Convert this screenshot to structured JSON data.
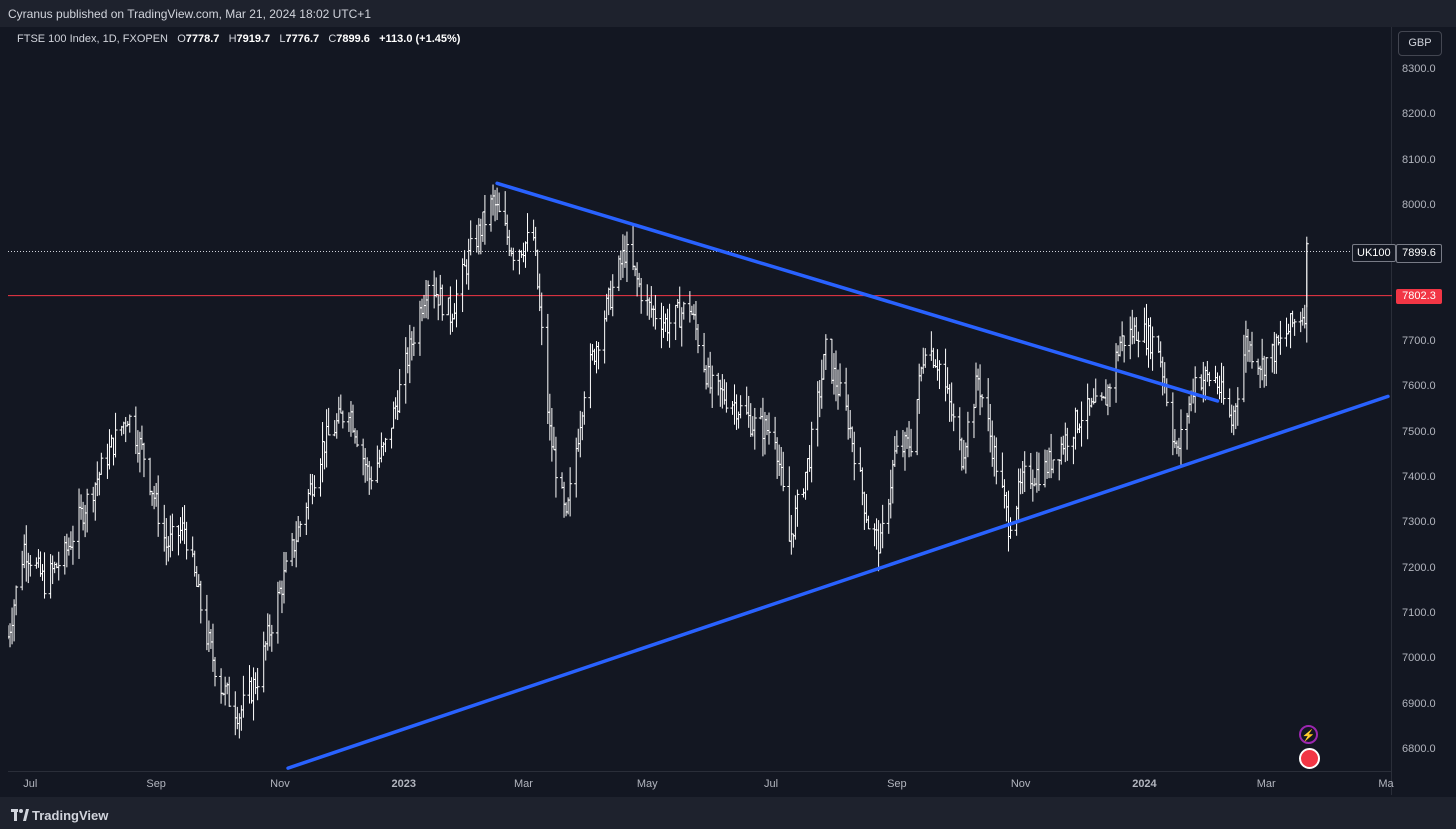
{
  "header": {
    "published": "Cyranus published on TradingView.com, Mar 21, 2024 18:02 UTC+1"
  },
  "legend": {
    "symbol": "FTSE 100 Index, 1D, FXOPEN",
    "open_label": "O",
    "open": "7778.7",
    "high_label": "H",
    "high": "7919.7",
    "low_label": "L",
    "low": "7776.7",
    "close_label": "C",
    "close": "7899.6",
    "change": "+113.0 (+1.45%)"
  },
  "currency": "GBP",
  "symbol_tag": "UK100",
  "price_tag": "7899.6",
  "level_tag": "7802.3",
  "footer": {
    "brand": "TradingView"
  },
  "colors": {
    "background": "#131722",
    "bars": "#ffffff",
    "trendline": "#2962ff",
    "level": "#f23645"
  },
  "chart_data": {
    "type": "ohlc",
    "title": "FTSE 100 Index, 1D, FXOPEN",
    "ylabel": "",
    "y_ticks": [
      "8300.0",
      "8200.0",
      "8100.0",
      "8000.0",
      "7900.0",
      "7800.0",
      "7700.0",
      "7600.0",
      "7500.0",
      "7400.0",
      "7300.0",
      "7200.0",
      "7100.0",
      "7000.0",
      "6900.0",
      "6800.0"
    ],
    "x_ticks": [
      "Jul",
      "Sep",
      "Nov",
      "2023",
      "Mar",
      "May",
      "Jul",
      "Sep",
      "Nov",
      "2024",
      "Mar",
      "Ma"
    ],
    "x_range": [
      "2022-06-20",
      "2024-05-01"
    ],
    "ylim": [
      6760,
      8360
    ],
    "grid": false,
    "last_price": 7899.6,
    "horizontal_level": 7802.3,
    "trendlines": [
      {
        "name": "",
        "from": [
          "2023-02-16",
          8050
        ],
        "to": [
          "2024-02-06",
          7570
        ],
        "color": "#2962ff"
      },
      {
        "name": "",
        "from": [
          "2022-11-05",
          6760
        ],
        "to": [
          "2024-04-30",
          7580
        ],
        "color": "#2962ff"
      }
    ],
    "close_path": [
      [
        "2022-06-20",
        7050
      ],
      [
        "2022-06-28",
        7250
      ],
      [
        "2022-07-08",
        7170
      ],
      [
        "2022-07-18",
        7230
      ],
      [
        "2022-07-28",
        7340
      ],
      [
        "2022-08-08",
        7450
      ],
      [
        "2022-08-18",
        7540
      ],
      [
        "2022-08-26",
        7450
      ],
      [
        "2022-09-06",
        7250
      ],
      [
        "2022-09-15",
        7290
      ],
      [
        "2022-09-26",
        7050
      ],
      [
        "2022-10-03",
        6940
      ],
      [
        "2022-10-12",
        6880
      ],
      [
        "2022-10-21",
        6960
      ],
      [
        "2022-11-01",
        7150
      ],
      [
        "2022-11-11",
        7300
      ],
      [
        "2022-11-22",
        7470
      ],
      [
        "2022-12-05",
        7560
      ],
      [
        "2022-12-15",
        7400
      ],
      [
        "2022-12-23",
        7470
      ],
      [
        "2023-01-05",
        7700
      ],
      [
        "2023-01-13",
        7840
      ],
      [
        "2023-01-24",
        7760
      ],
      [
        "2023-02-03",
        7900
      ],
      [
        "2023-02-14",
        8010
      ],
      [
        "2023-02-24",
        7900
      ],
      [
        "2023-03-06",
        7930
      ],
      [
        "2023-03-14",
        7500
      ],
      [
        "2023-03-22",
        7300
      ],
      [
        "2023-03-31",
        7600
      ],
      [
        "2023-04-10",
        7760
      ],
      [
        "2023-04-20",
        7900
      ],
      [
        "2023-05-01",
        7780
      ],
      [
        "2023-05-11",
        7740
      ],
      [
        "2023-05-22",
        7780
      ],
      [
        "2023-06-01",
        7600
      ],
      [
        "2023-06-12",
        7570
      ],
      [
        "2023-06-22",
        7520
      ],
      [
        "2023-07-03",
        7500
      ],
      [
        "2023-07-10",
        7260
      ],
      [
        "2023-07-20",
        7450
      ],
      [
        "2023-07-28",
        7680
      ],
      [
        "2023-08-08",
        7530
      ],
      [
        "2023-08-18",
        7300
      ],
      [
        "2023-08-24",
        7250
      ],
      [
        "2023-08-31",
        7450
      ],
      [
        "2023-09-08",
        7480
      ],
      [
        "2023-09-15",
        7700
      ],
      [
        "2023-09-22",
        7650
      ],
      [
        "2023-10-03",
        7450
      ],
      [
        "2023-10-11",
        7620
      ],
      [
        "2023-10-20",
        7430
      ],
      [
        "2023-10-26",
        7300
      ],
      [
        "2023-11-03",
        7400
      ],
      [
        "2023-11-13",
        7420
      ],
      [
        "2023-11-22",
        7480
      ],
      [
        "2023-12-01",
        7540
      ],
      [
        "2023-12-12",
        7560
      ],
      [
        "2023-12-20",
        7700
      ],
      [
        "2023-12-29",
        7730
      ],
      [
        "2024-01-08",
        7690
      ],
      [
        "2024-01-17",
        7450
      ],
      [
        "2024-01-26",
        7620
      ],
      [
        "2024-02-05",
        7620
      ],
      [
        "2024-02-13",
        7520
      ],
      [
        "2024-02-20",
        7700
      ],
      [
        "2024-02-28",
        7650
      ],
      [
        "2024-03-07",
        7690
      ],
      [
        "2024-03-14",
        7740
      ],
      [
        "2024-03-20",
        7770
      ],
      [
        "2024-03-21",
        7899.6
      ]
    ]
  }
}
